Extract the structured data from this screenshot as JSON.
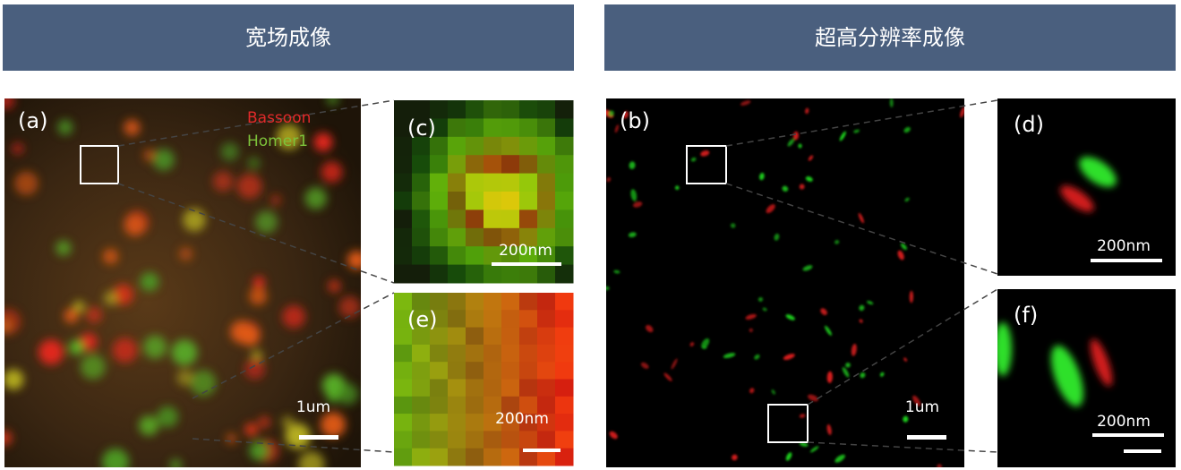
{
  "headers": {
    "widefield": "宽场成像",
    "super_resolution": "超高分辨率成像"
  },
  "panels": {
    "a": {
      "label": "(a)",
      "legend": [
        "Bassoon",
        "Homer1"
      ],
      "scale": "1um"
    },
    "b": {
      "label": "(b)",
      "scale": "1um"
    },
    "c": {
      "label": "(c)",
      "scale": "200nm"
    },
    "d": {
      "label": "(d)",
      "scale": "200nm"
    },
    "e": {
      "label": "(e)",
      "scale": "200nm"
    },
    "f": {
      "label": "(f)",
      "scale": "200nm"
    }
  }
}
